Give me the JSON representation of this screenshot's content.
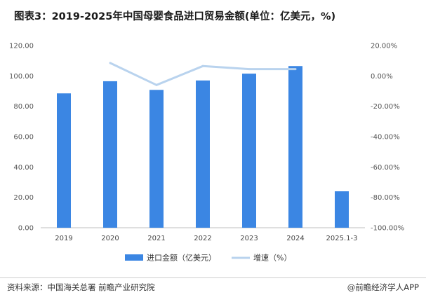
{
  "title": "图表3：2019-2025年中国母婴食品进口贸易金额(单位：亿美元，%)",
  "footer": {
    "source": "资料来源：中国海关总署 前瞻产业研究院",
    "brand": "@前瞻经济学人APP"
  },
  "chart_data": {
    "type": "bar",
    "categories": [
      "2019",
      "2020",
      "2021",
      "2022",
      "2023",
      "2024",
      "2025.1-3"
    ],
    "series": [
      {
        "name": "进口金额（亿美元）",
        "type": "bar",
        "axis": "left",
        "color": "#3b86e3",
        "values": [
          88.5,
          96.5,
          90.8,
          97.0,
          101.5,
          106.5,
          24.0
        ]
      },
      {
        "name": "增速（%）",
        "type": "line",
        "axis": "right",
        "color": "#b9d3ee",
        "values": [
          null,
          8.5,
          -6.0,
          6.5,
          4.5,
          4.5,
          null
        ]
      }
    ],
    "y_left": {
      "min": 0,
      "max": 120,
      "ticks": [
        "0.00",
        "20.00",
        "40.00",
        "60.00",
        "80.00",
        "100.00",
        "120.00"
      ]
    },
    "y_right": {
      "min": -100,
      "max": 20,
      "ticks": [
        "-100.00%",
        "-80.00%",
        "-60.00%",
        "-40.00%",
        "-20.00%",
        "0.00%",
        "20.00%"
      ]
    },
    "legend_position": "bottom",
    "grid": false
  }
}
